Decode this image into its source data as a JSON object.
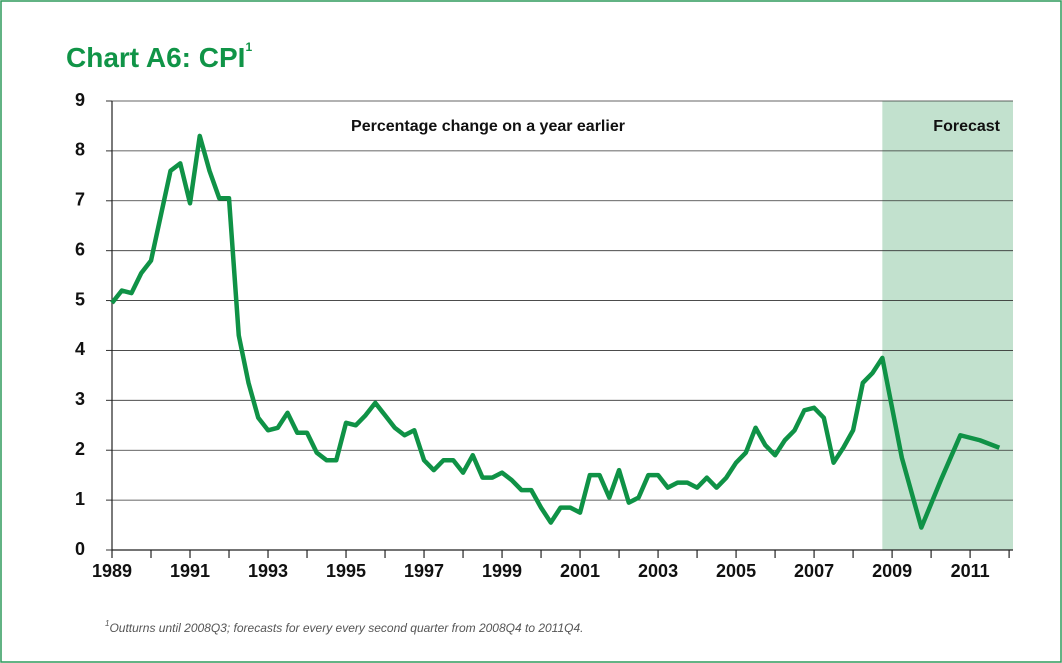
{
  "chart_data": {
    "type": "line",
    "title": "Chart A6: CPI",
    "title_note": "1",
    "annotation": "Percentage change on a year earlier",
    "shaded_region": {
      "label": "Forecast",
      "from": 2008.75,
      "to": 2012.1,
      "color": "#c2e1ce"
    },
    "footnote_marker": "1",
    "footnote": "Outturns until 2008Q3; forecasts for every every second quarter from 2008Q4 to 2011Q4.",
    "xlim": [
      1989,
      2012.1
    ],
    "xticks": [
      1989,
      1991,
      1993,
      1995,
      1997,
      1999,
      2001,
      2003,
      2005,
      2007,
      2009,
      2011
    ],
    "x_minor_ticks": [
      1990,
      1992,
      1994,
      1996,
      1998,
      2000,
      2002,
      2004,
      2006,
      2008,
      2010,
      2012
    ],
    "ylim": [
      0,
      9
    ],
    "yticks": [
      0,
      1,
      2,
      3,
      4,
      5,
      6,
      7,
      8,
      9
    ],
    "grid": true,
    "series": [
      {
        "color": "#0f9246",
        "x": [
          1989,
          1989.25,
          1989.5,
          1989.75,
          1990,
          1990.25,
          1990.5,
          1990.75,
          1991,
          1991.25,
          1991.5,
          1991.75,
          1992,
          1992.25,
          1992.5,
          1992.75,
          1993,
          1993.25,
          1993.5,
          1993.75,
          1994,
          1994.25,
          1994.5,
          1994.75,
          1995,
          1995.25,
          1995.5,
          1995.75,
          1996,
          1996.25,
          1996.5,
          1996.75,
          1997,
          1997.25,
          1997.5,
          1997.75,
          1998,
          1998.25,
          1998.5,
          1998.75,
          1999,
          1999.25,
          1999.5,
          1999.75,
          2000,
          2000.25,
          2000.5,
          2000.75,
          2001,
          2001.25,
          2001.5,
          2001.75,
          2002,
          2002.25,
          2002.5,
          2002.75,
          2003,
          2003.25,
          2003.5,
          2003.75,
          2004,
          2004.25,
          2004.5,
          2004.75,
          2005,
          2005.25,
          2005.5,
          2005.75,
          2006,
          2006.25,
          2006.5,
          2006.75,
          2007,
          2007.25,
          2007.5,
          2007.75,
          2008,
          2008.25,
          2008.5,
          2008.75,
          2009.25,
          2009.75,
          2010.25,
          2010.75,
          2011.25,
          2011.75
        ],
        "values": [
          4.95,
          5.2,
          5.15,
          5.55,
          5.8,
          6.7,
          7.6,
          7.75,
          6.95,
          8.3,
          7.6,
          7.05,
          7.05,
          4.3,
          3.35,
          2.65,
          2.4,
          2.45,
          2.75,
          2.35,
          2.35,
          1.95,
          1.8,
          1.8,
          2.55,
          2.5,
          2.7,
          2.95,
          2.7,
          2.45,
          2.3,
          2.4,
          1.8,
          1.6,
          1.8,
          1.8,
          1.55,
          1.9,
          1.45,
          1.45,
          1.55,
          1.4,
          1.2,
          1.2,
          0.85,
          0.55,
          0.85,
          0.85,
          0.75,
          1.5,
          1.5,
          1.05,
          1.6,
          0.95,
          1.05,
          1.5,
          1.5,
          1.25,
          1.35,
          1.35,
          1.25,
          1.45,
          1.25,
          1.45,
          1.75,
          1.95,
          2.45,
          2.1,
          1.9,
          2.2,
          2.4,
          2.8,
          2.85,
          2.65,
          1.75,
          2.05,
          2.4,
          3.35,
          3.55,
          3.85,
          1.85,
          0.45,
          1.4,
          2.3,
          2.2,
          2.05
        ]
      }
    ]
  }
}
